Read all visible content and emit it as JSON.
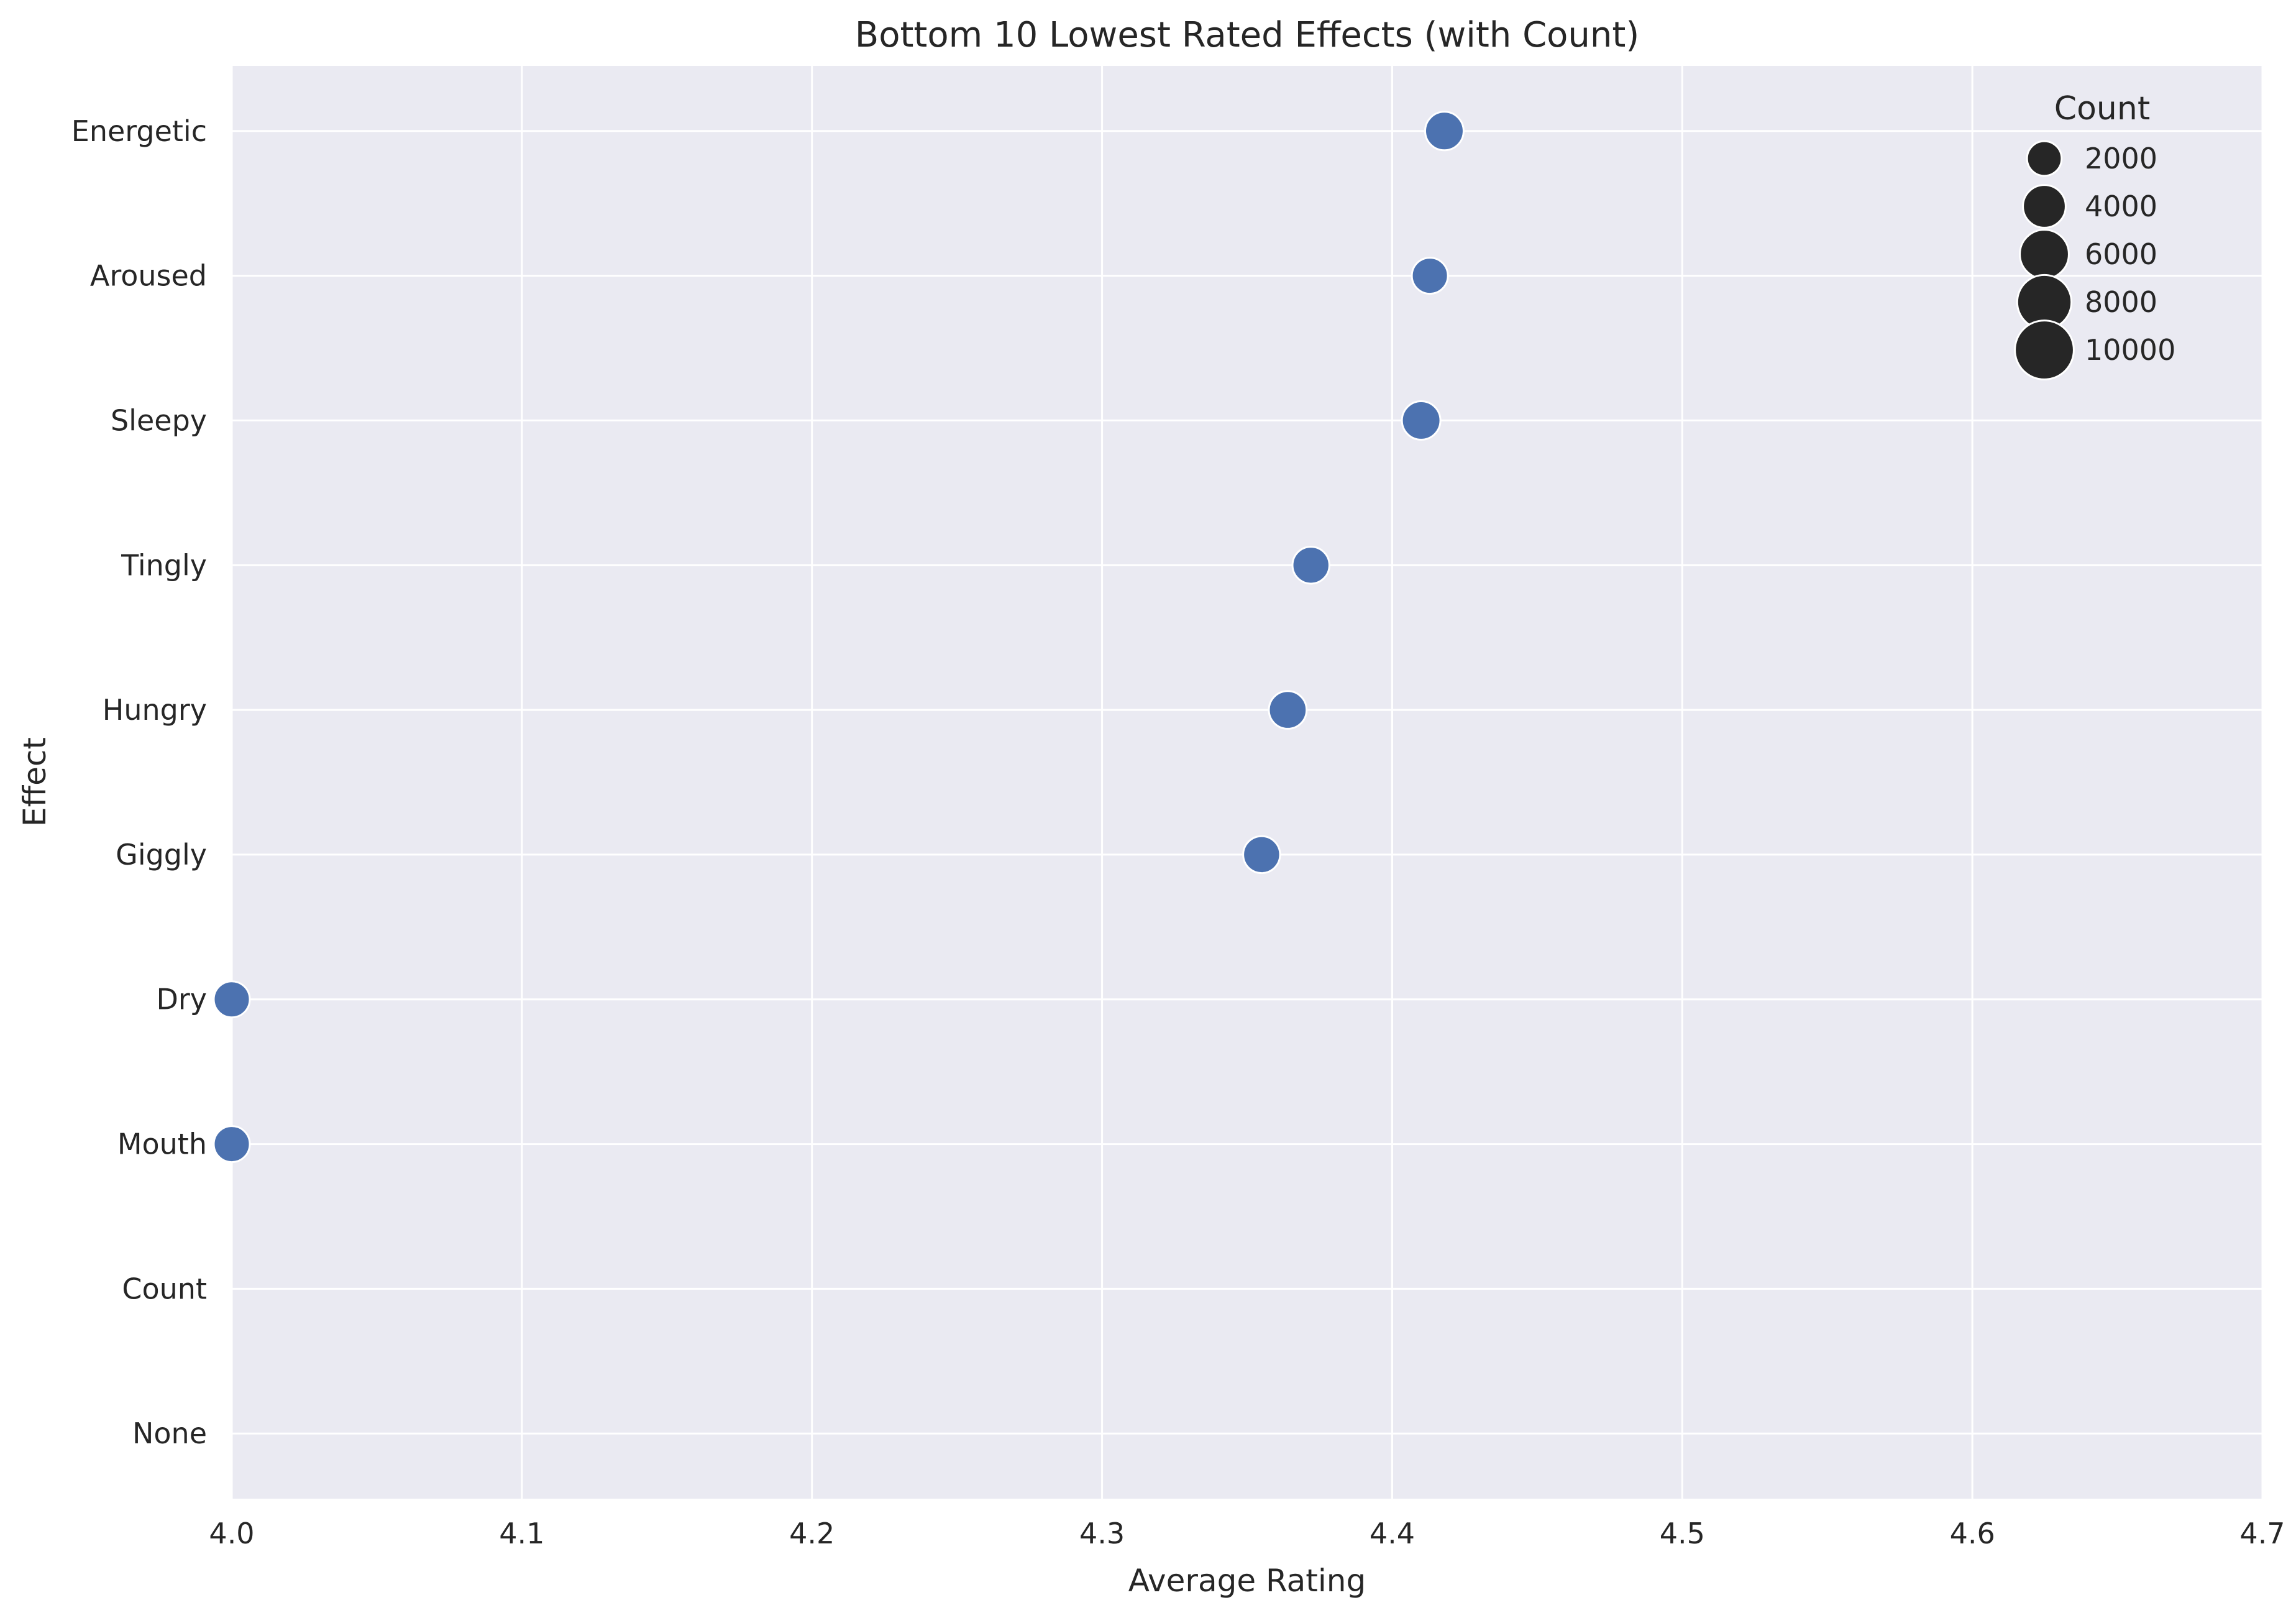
{
  "chart_data": {
    "type": "scatter",
    "title": "Bottom 10 Lowest Rated Effects (with Count)",
    "xlabel": "Average Rating",
    "ylabel": "Effect",
    "xlim": [
      4.0,
      4.7
    ],
    "x_ticks": [
      "4.0",
      "4.1",
      "4.2",
      "4.3",
      "4.4",
      "4.5",
      "4.6",
      "4.7"
    ],
    "categories": [
      "Energetic",
      "Aroused",
      "Sleepy",
      "Tingly",
      "Hungry",
      "Giggly",
      "Dry",
      "Mouth",
      "Count",
      "None"
    ],
    "points": [
      {
        "effect": "Energetic",
        "rating": 4.418,
        "count": 1300
      },
      {
        "effect": "Aroused",
        "rating": 4.413,
        "count": 1000
      },
      {
        "effect": "Sleepy",
        "rating": 4.41,
        "count": 1300
      },
      {
        "effect": "Tingly",
        "rating": 4.372,
        "count": 1100
      },
      {
        "effect": "Hungry",
        "rating": 4.364,
        "count": 1200
      },
      {
        "effect": "Giggly",
        "rating": 4.355,
        "count": 1100
      },
      {
        "effect": "Dry",
        "rating": 4.0,
        "count": 1000
      },
      {
        "effect": "Mouth",
        "rating": 4.0,
        "count": 1000
      }
    ],
    "grid": true,
    "legend": {
      "title": "Count",
      "placement": "top-right",
      "entries": [
        2000,
        4000,
        6000,
        8000,
        10000
      ]
    },
    "colors": {
      "point": "#4c72b0",
      "background": "#eaeaf2",
      "grid": "#ffffff",
      "legend_marker": "#262626"
    }
  }
}
